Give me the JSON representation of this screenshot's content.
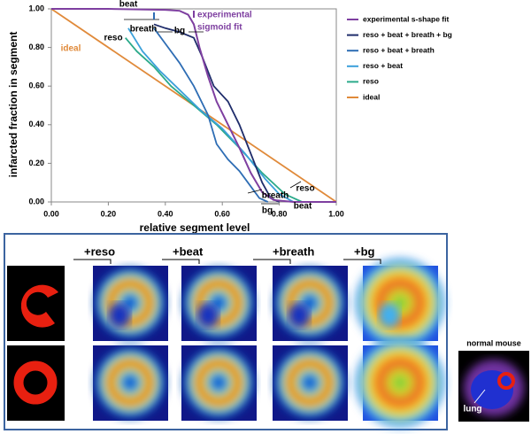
{
  "chart_data": {
    "type": "line",
    "x_label": "relative segment level",
    "y_label": "infarcted fraction in segment",
    "xlim": [
      0,
      1
    ],
    "ylim": [
      0,
      1
    ],
    "xticks": [
      {
        "value": 0,
        "label": "0.00"
      },
      {
        "value": 0.2,
        "label": "0.20"
      },
      {
        "value": 0.4,
        "label": "0.40"
      },
      {
        "value": 0.6,
        "label": "0.60"
      },
      {
        "value": 0.8,
        "label": "0.80"
      },
      {
        "value": 1,
        "label": "1.00"
      }
    ],
    "yticks": [
      {
        "value": 0,
        "label": "0.00"
      },
      {
        "value": 0.2,
        "label": "0.20"
      },
      {
        "value": 0.4,
        "label": "0.40"
      },
      {
        "value": 0.6,
        "label": "0.60"
      },
      {
        "value": 0.8,
        "label": "0.80"
      },
      {
        "value": 1,
        "label": "1.00"
      }
    ],
    "series": [
      {
        "name": "experimental s-shape fit",
        "color": "#7e3fa0",
        "x": [
          0,
          0.2,
          0.4,
          0.45,
          0.48,
          0.5,
          0.52,
          0.55,
          0.58,
          0.62,
          0.66,
          0.7,
          0.74,
          0.78,
          0.85,
          1
        ],
        "values": [
          1,
          1,
          0.995,
          0.99,
          0.97,
          0.92,
          0.8,
          0.65,
          0.52,
          0.4,
          0.28,
          0.15,
          0.05,
          0.01,
          0,
          0
        ]
      },
      {
        "name": "reso + beat + breath + bg",
        "color": "#1f2d6b",
        "x": [
          0.36,
          0.4,
          0.45,
          0.5,
          0.53,
          0.57,
          0.62,
          0.66,
          0.7,
          0.74,
          0.77,
          0.8
        ],
        "values": [
          0.92,
          0.9,
          0.88,
          0.85,
          0.75,
          0.6,
          0.52,
          0.4,
          0.25,
          0.1,
          0.02,
          0
        ]
      },
      {
        "name": "reso + beat + breath",
        "color": "#2e6db4",
        "x": [
          0.36,
          0.4,
          0.45,
          0.5,
          0.55,
          0.58,
          0.62,
          0.66,
          0.7,
          0.73,
          0.76
        ],
        "values": [
          0.9,
          0.82,
          0.72,
          0.6,
          0.45,
          0.3,
          0.22,
          0.16,
          0.08,
          0.02,
          0
        ]
      },
      {
        "name": "reso + beat",
        "color": "#3ba0da",
        "x": [
          0.27,
          0.32,
          0.38,
          0.45,
          0.52,
          0.6,
          0.68,
          0.75,
          0.8,
          0.85
        ],
        "values": [
          0.9,
          0.78,
          0.68,
          0.58,
          0.48,
          0.38,
          0.25,
          0.12,
          0.04,
          0
        ]
      },
      {
        "name": "reso",
        "color": "#2baa8a",
        "x": [
          0.26,
          0.3,
          0.36,
          0.42,
          0.5,
          0.58,
          0.66,
          0.74,
          0.82,
          0.88
        ],
        "values": [
          0.85,
          0.78,
          0.7,
          0.6,
          0.5,
          0.4,
          0.28,
          0.15,
          0.04,
          0
        ]
      },
      {
        "name": "ideal",
        "color": "#e08a3a",
        "x": [
          0,
          1
        ],
        "values": [
          1,
          0
        ]
      }
    ],
    "annotations": [
      "beat",
      "reso",
      "breath",
      "bg",
      "experimental",
      "sigmoid fit",
      "ideal",
      "breath",
      "reso",
      "bg",
      "beat"
    ]
  },
  "figure": {
    "steps": [
      "+reso",
      "+beat",
      "+breath",
      "+bg"
    ],
    "inset_title": "normal mouse",
    "inset_label": "lung"
  }
}
